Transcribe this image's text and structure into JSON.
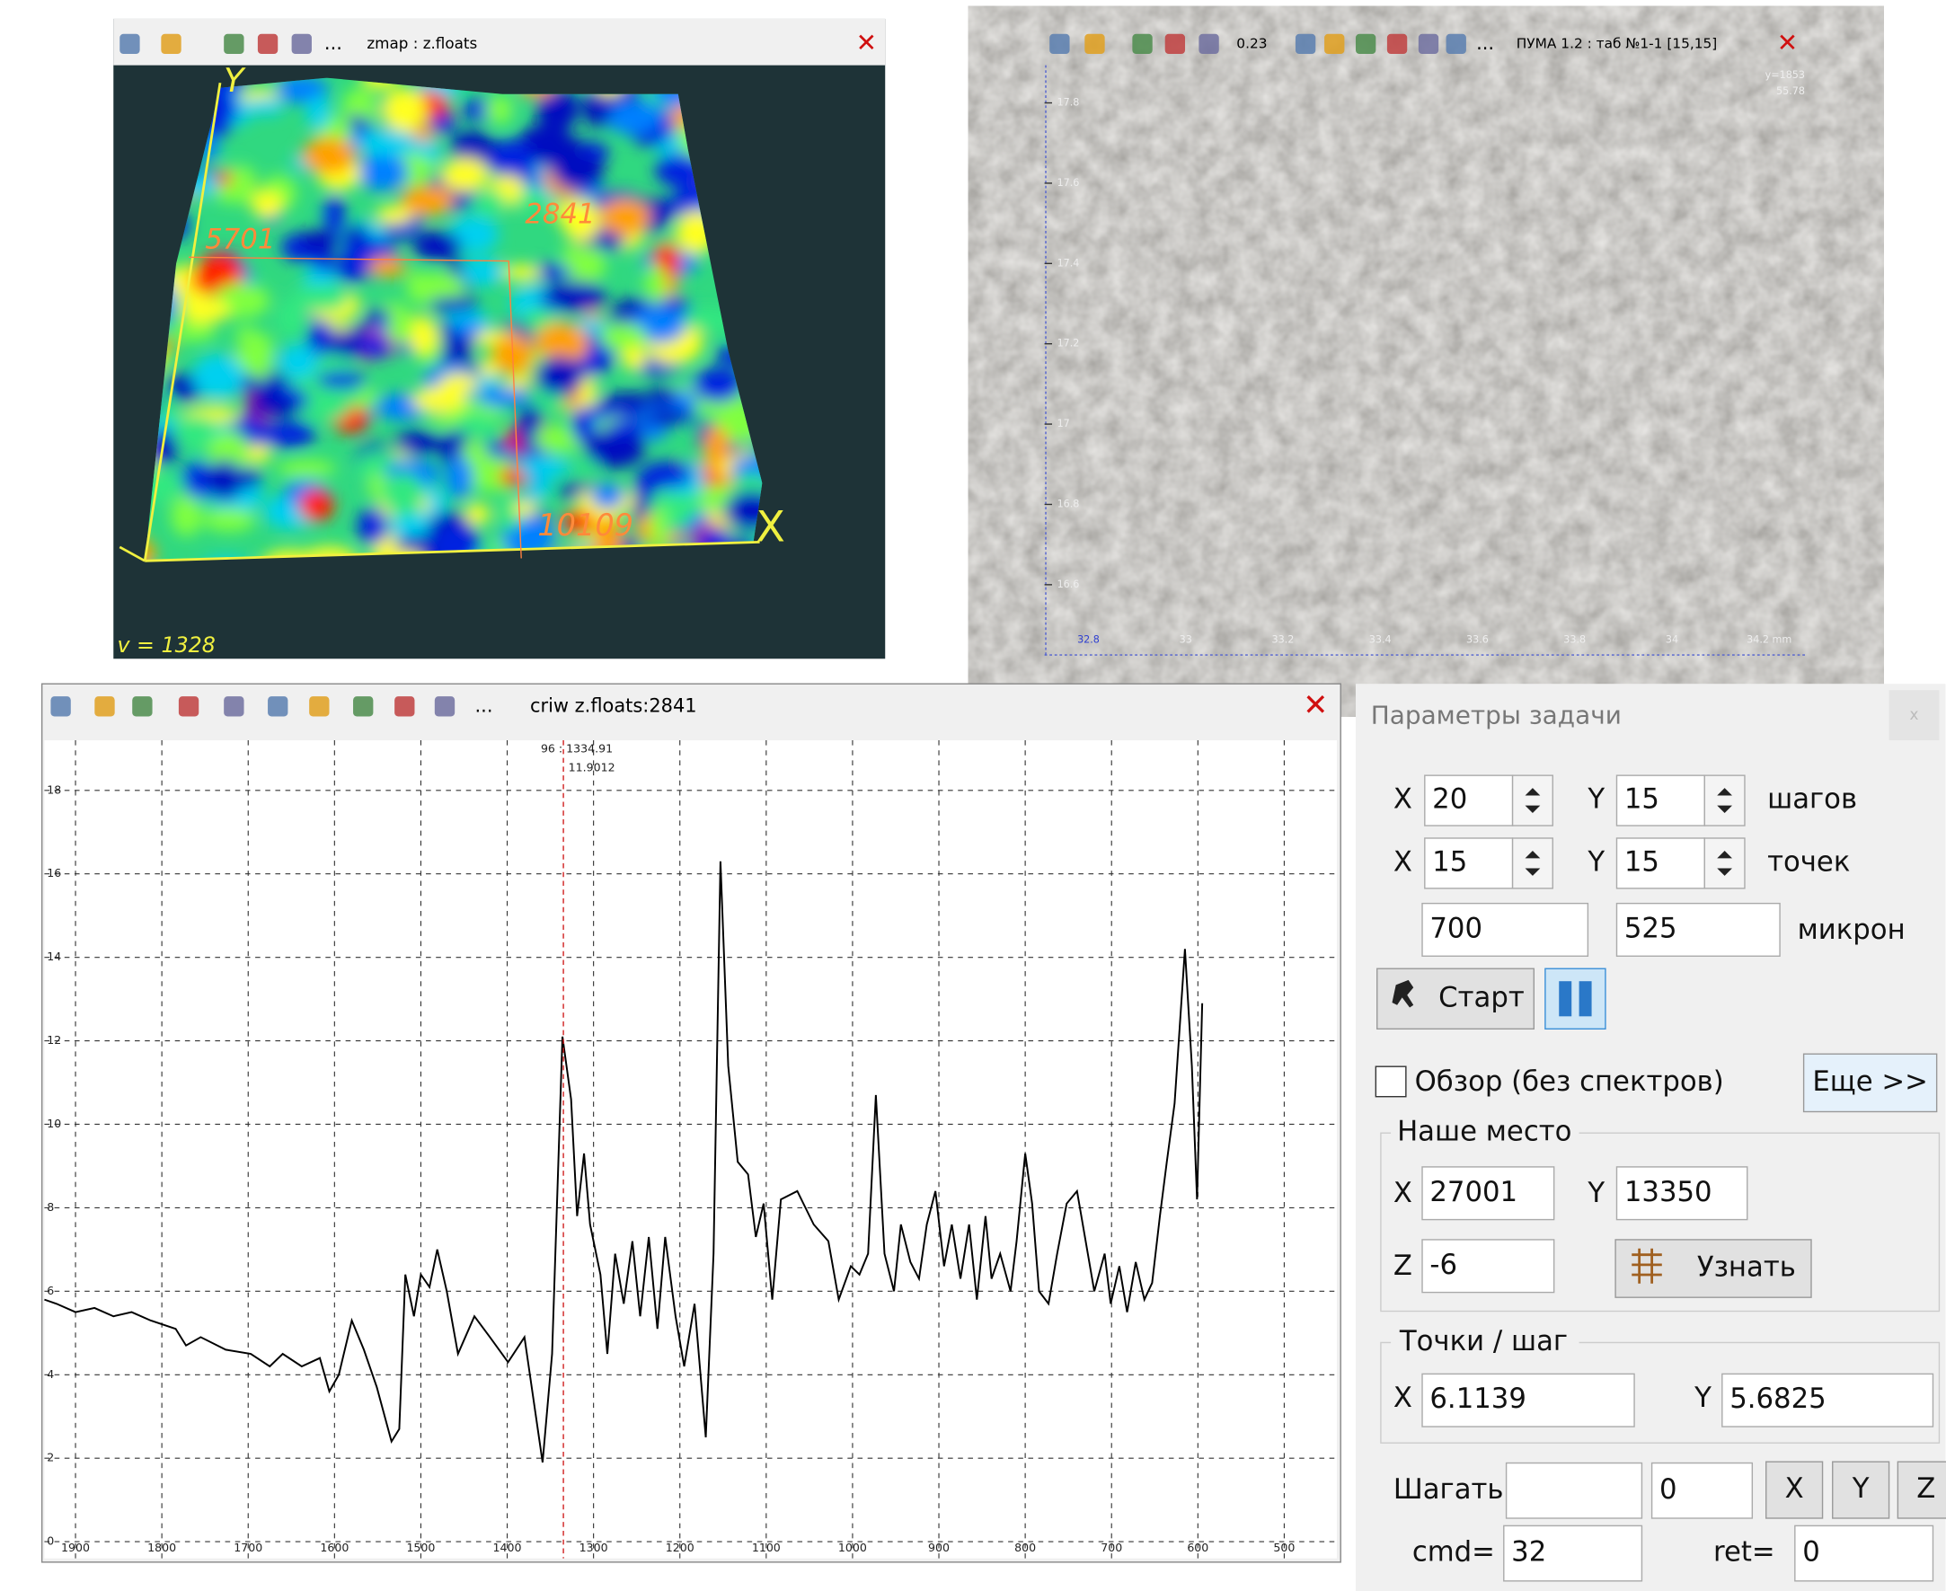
{
  "map_window": {
    "title": "zmap : z.floats",
    "more": "...",
    "axis_x": "X",
    "axis_y": "Y",
    "markers": [
      "5701",
      "2841",
      "10109"
    ],
    "status": "v = 1328"
  },
  "image_window": {
    "zoom": "0.23",
    "more": "...",
    "title": "ПУМА 1.2 : таб №1-1 [15,15]",
    "yticks": [
      "17.8",
      "17.6",
      "17.4",
      "17.2",
      "17",
      "16.8",
      "16.6"
    ],
    "xticks": [
      "32.8",
      "33",
      "33.2",
      "33.4",
      "33.6",
      "33.8",
      "34",
      "34.2 mm"
    ],
    "corner": [
      "y=1853",
      "55.78"
    ]
  },
  "chart_data": {
    "type": "line",
    "title": "criw z.floats:2841",
    "more": "...",
    "color": "#000000",
    "grid": true,
    "x": [
      1936,
      1922,
      1900,
      1878,
      1856,
      1835,
      1813,
      1784,
      1772,
      1755,
      1726,
      1697,
      1675,
      1660,
      1638,
      1617,
      1606,
      1595,
      1580,
      1566,
      1551,
      1534,
      1525,
      1518,
      1508,
      1500,
      1490,
      1481,
      1470,
      1457,
      1438,
      1420,
      1399,
      1380,
      1359,
      1348,
      1336,
      1326,
      1319,
      1311,
      1304,
      1292,
      1284,
      1275,
      1265,
      1255,
      1246,
      1236,
      1226,
      1217,
      1205,
      1195,
      1183,
      1170,
      1161,
      1153,
      1144,
      1133,
      1121,
      1112,
      1103,
      1093,
      1083,
      1064,
      1045,
      1028,
      1016,
      1002,
      992,
      982,
      973,
      963,
      952,
      944,
      933,
      923,
      914,
      904,
      894,
      885,
      875,
      865,
      856,
      846,
      839,
      829,
      817,
      810,
      800,
      792,
      784,
      773,
      763,
      752,
      740,
      730,
      720,
      708,
      701,
      691,
      682,
      672,
      662,
      653,
      644,
      636,
      627,
      615,
      607,
      601,
      595
    ],
    "values": [
      5.8,
      5.7,
      5.5,
      5.6,
      5.4,
      5.5,
      5.3,
      5.1,
      4.7,
      4.9,
      4.6,
      4.5,
      4.2,
      4.5,
      4.2,
      4.4,
      3.6,
      4.0,
      5.3,
      4.6,
      3.7,
      2.4,
      2.7,
      6.4,
      5.4,
      6.4,
      6.1,
      7.0,
      6.0,
      4.5,
      5.4,
      4.9,
      4.3,
      4.9,
      1.9,
      4.5,
      12.1,
      10.6,
      7.8,
      9.3,
      7.6,
      6.4,
      4.5,
      6.9,
      5.7,
      7.2,
      5.4,
      7.3,
      5.1,
      7.3,
      5.4,
      4.2,
      5.7,
      2.5,
      6.9,
      16.3,
      11.4,
      9.1,
      8.8,
      7.3,
      8.1,
      5.8,
      8.2,
      8.4,
      7.6,
      7.2,
      5.8,
      6.6,
      6.4,
      6.9,
      10.7,
      6.9,
      6.0,
      7.6,
      6.7,
      6.3,
      7.6,
      8.4,
      6.6,
      7.6,
      6.3,
      7.6,
      5.8,
      7.8,
      6.3,
      6.9,
      6.0,
      7.2,
      9.3,
      8.1,
      6.0,
      5.7,
      6.9,
      8.1,
      8.4,
      7.2,
      6.0,
      6.9,
      5.7,
      6.6,
      5.5,
      6.7,
      5.8,
      6.2,
      7.8,
      9.1,
      10.5,
      14.2,
      11.4,
      8.2,
      12.9
    ],
    "xlim": [
      1936,
      439
    ],
    "ylim": [
      -0.4,
      19.2
    ],
    "xticks": [
      1900,
      1800,
      1700,
      1600,
      1500,
      1400,
      1300,
      1200,
      1100,
      1000,
      900,
      800,
      700,
      600,
      500
    ],
    "yticks": [
      0,
      2,
      4,
      6,
      8,
      10,
      12,
      14,
      16,
      18
    ],
    "cursor": {
      "x": 1334.91,
      "labels": [
        "96 : 1334.91",
        "11.9012"
      ]
    }
  },
  "params": {
    "title": "Параметры задачи",
    "close": "x",
    "steps": {
      "x_label": "X",
      "x": "20",
      "y_label": "Y",
      "y": "15",
      "unit": "шагов"
    },
    "points": {
      "x_label": "X",
      "x": "15",
      "y_label": "Y",
      "y": "15",
      "unit": "точек"
    },
    "size": {
      "x": "700",
      "y": "525",
      "unit": "микрон"
    },
    "start": "Старт",
    "overview": "Обзор (без спектров)",
    "more": "Еще >>",
    "location": {
      "title": "Наше место",
      "x_label": "X",
      "x": "27001",
      "y_label": "Y",
      "y": "13350",
      "z_label": "Z",
      "z": "-6",
      "button": "Узнать"
    },
    "points_per_step": {
      "title": "Точки / шаг",
      "x_label": "X",
      "x": "6.1139",
      "y_label": "Y",
      "y": "5.6825"
    },
    "step": {
      "label": "Шагать",
      "count": "0",
      "buttons": [
        "X",
        "Y",
        "Z"
      ]
    },
    "cmd": {
      "label": "cmd=",
      "value": "32"
    },
    "ret": {
      "label": "ret=",
      "value": "0"
    }
  }
}
